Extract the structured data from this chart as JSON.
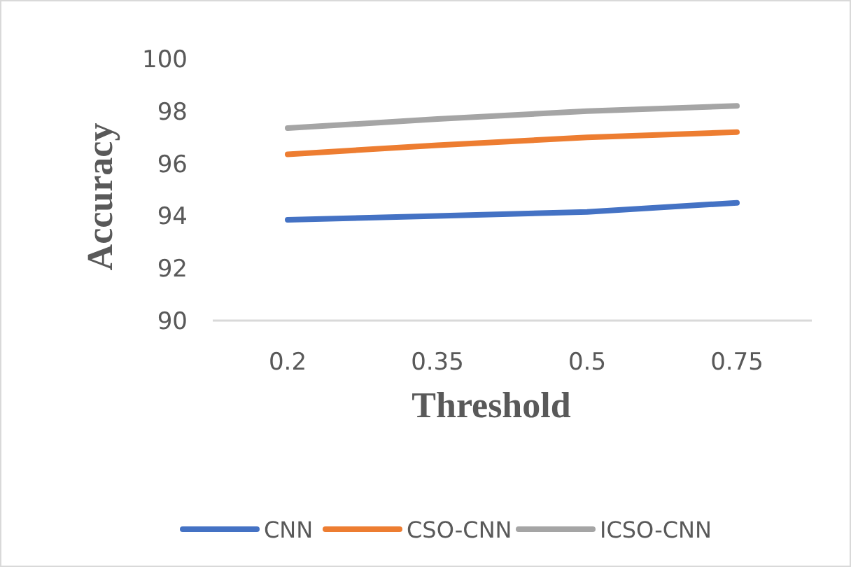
{
  "chart_data": {
    "type": "line",
    "xlabel": "Threshold",
    "ylabel": "Accuracy",
    "categories": [
      "0.2",
      "0.35",
      "0.5",
      "0.75"
    ],
    "series": [
      {
        "name": "CNN",
        "color": "#4472c4",
        "values": [
          93.85,
          94.0,
          94.15,
          94.5
        ]
      },
      {
        "name": "CSO-CNN",
        "color": "#ed7d31",
        "values": [
          96.35,
          96.7,
          97.0,
          97.2
        ]
      },
      {
        "name": "ICSO-CNN",
        "color": "#a5a5a5",
        "values": [
          97.35,
          97.7,
          98.0,
          98.2
        ]
      }
    ],
    "ylim": [
      90,
      100
    ],
    "yticks": [
      90,
      92,
      94,
      96,
      98,
      100
    ],
    "grid": false,
    "legend": "bottom",
    "marker": "none",
    "line_style": "solid"
  }
}
